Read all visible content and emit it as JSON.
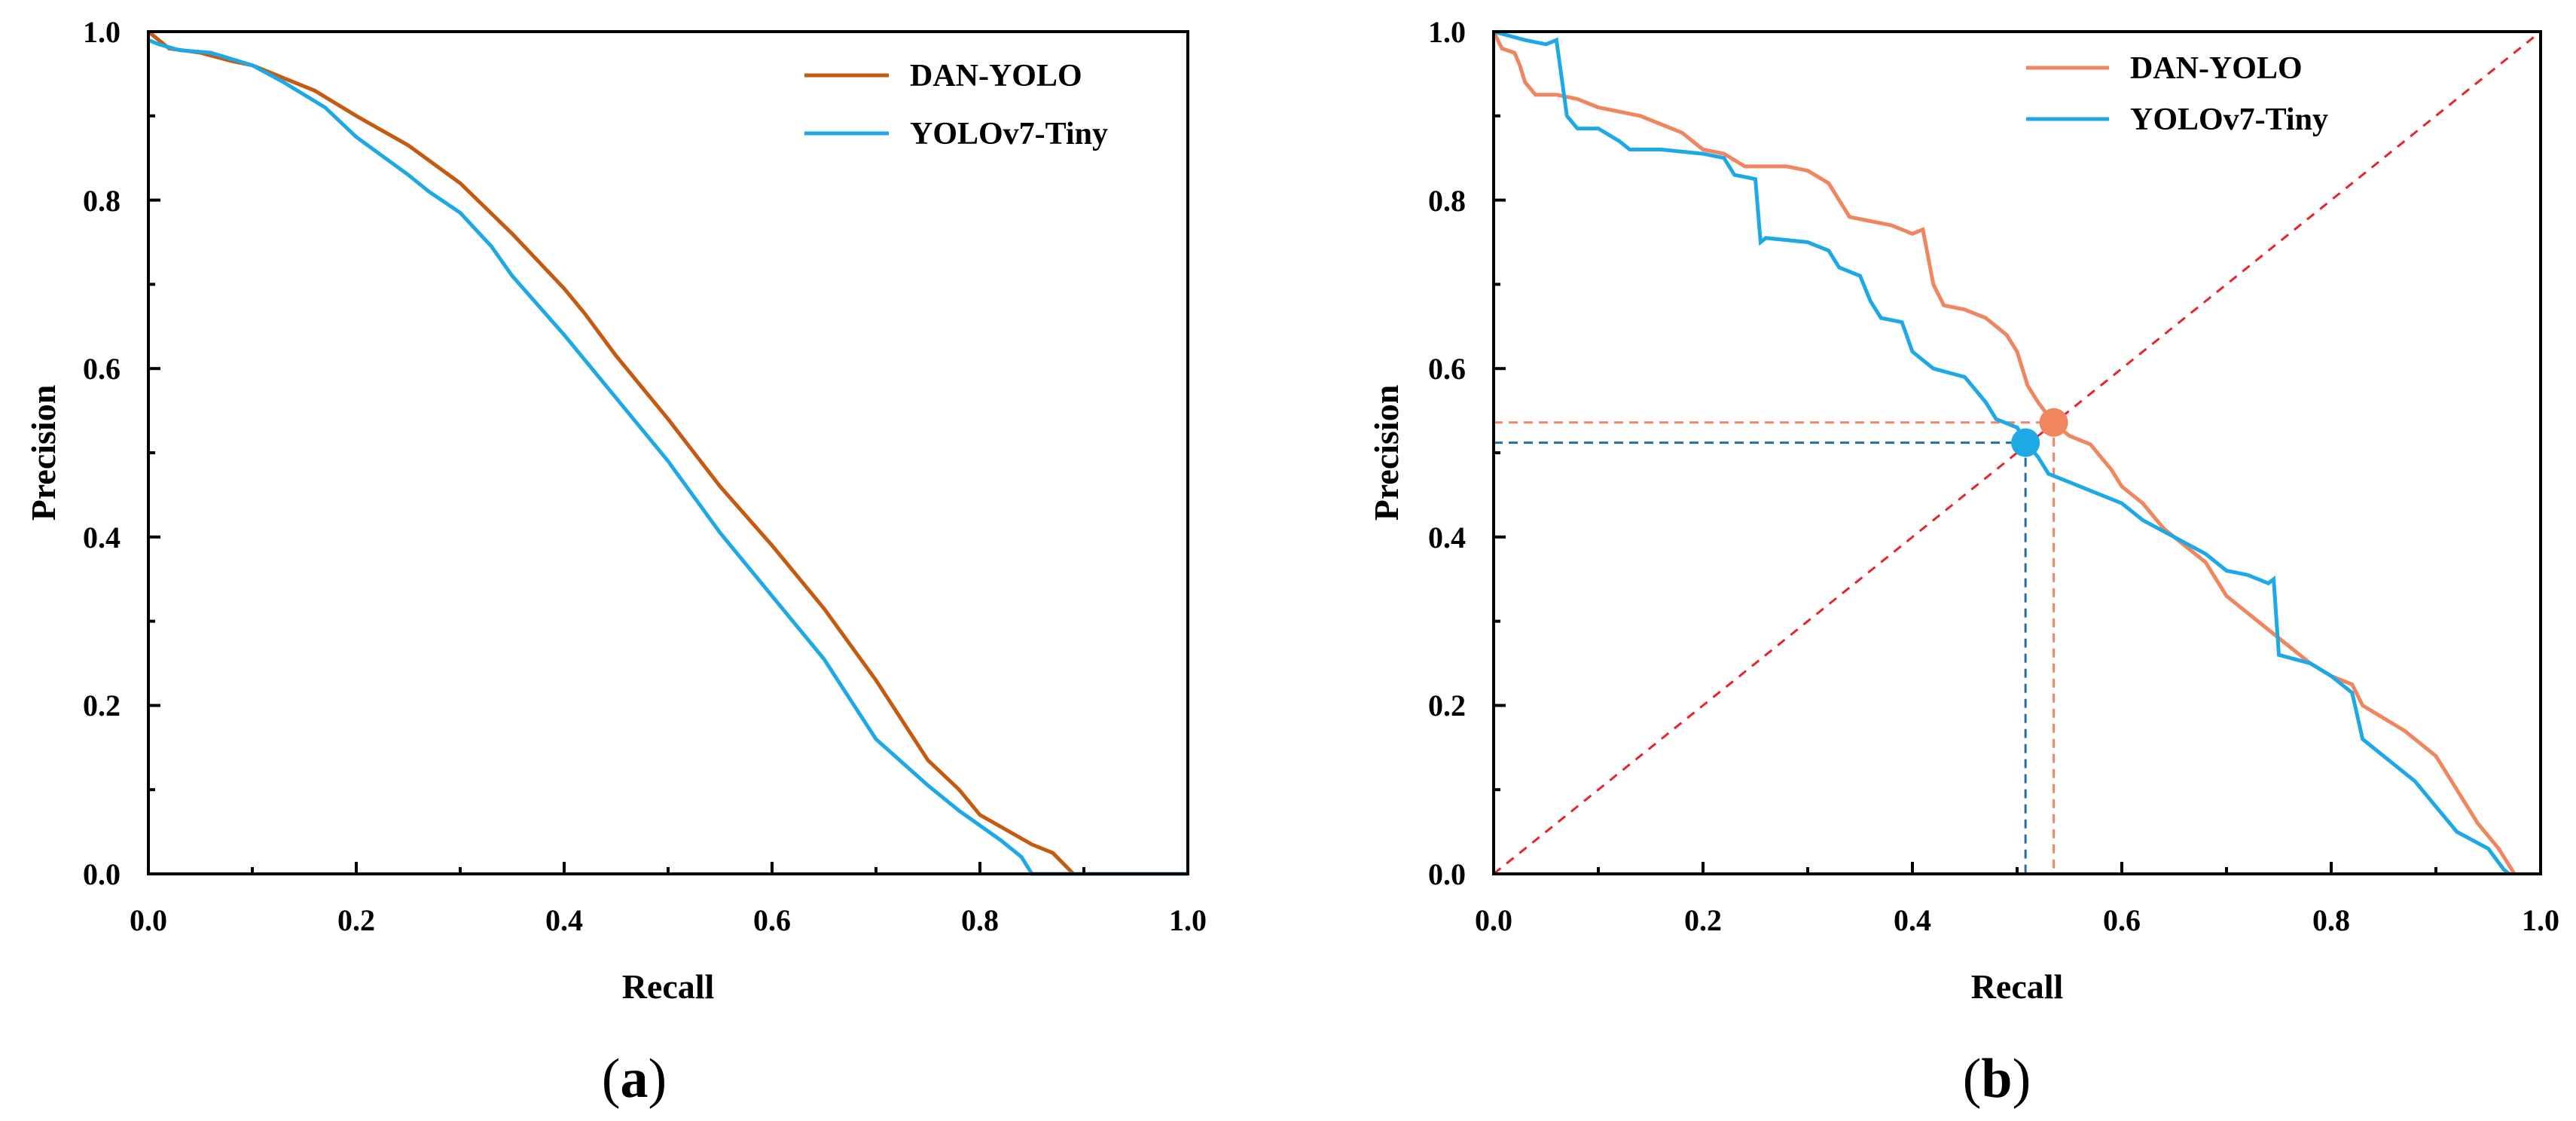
{
  "chart_data": [
    {
      "type": "line",
      "panel_label_open": "(",
      "panel_label_letter": "a",
      "panel_label_close": ")",
      "xlabel": "Recall",
      "ylabel": "Precision",
      "xlim": [
        0,
        1
      ],
      "ylim": [
        0,
        1
      ],
      "x_ticks": [
        "0.0",
        "0.2",
        "0.4",
        "0.6",
        "0.8",
        "1.0"
      ],
      "y_ticks": [
        "0.0",
        "0.2",
        "0.4",
        "0.6",
        "0.8",
        "1.0"
      ],
      "grid": false,
      "legend_position": "top-right",
      "series": [
        {
          "name": "DAN-YOLO",
          "color": "#c55a11",
          "points": [
            [
              0.0,
              1.0
            ],
            [
              0.01,
              0.99
            ],
            [
              0.02,
              0.98
            ],
            [
              0.05,
              0.975
            ],
            [
              0.08,
              0.965
            ],
            [
              0.1,
              0.96
            ],
            [
              0.13,
              0.945
            ],
            [
              0.16,
              0.93
            ],
            [
              0.2,
              0.9
            ],
            [
              0.25,
              0.865
            ],
            [
              0.3,
              0.82
            ],
            [
              0.35,
              0.76
            ],
            [
              0.4,
              0.695
            ],
            [
              0.42,
              0.665
            ],
            [
              0.45,
              0.615
            ],
            [
              0.5,
              0.54
            ],
            [
              0.55,
              0.46
            ],
            [
              0.6,
              0.39
            ],
            [
              0.65,
              0.315
            ],
            [
              0.7,
              0.23
            ],
            [
              0.75,
              0.135
            ],
            [
              0.78,
              0.1
            ],
            [
              0.8,
              0.07
            ],
            [
              0.85,
              0.035
            ],
            [
              0.87,
              0.025
            ],
            [
              0.89,
              0.0
            ],
            [
              1.0,
              0.0
            ]
          ]
        },
        {
          "name": "YOLOv7-Tiny",
          "color": "#1ea9e6",
          "points": [
            [
              0.0,
              0.99
            ],
            [
              0.01,
              0.985
            ],
            [
              0.03,
              0.978
            ],
            [
              0.06,
              0.975
            ],
            [
              0.1,
              0.96
            ],
            [
              0.13,
              0.94
            ],
            [
              0.17,
              0.91
            ],
            [
              0.2,
              0.875
            ],
            [
              0.25,
              0.83
            ],
            [
              0.27,
              0.81
            ],
            [
              0.3,
              0.785
            ],
            [
              0.33,
              0.745
            ],
            [
              0.35,
              0.71
            ],
            [
              0.4,
              0.64
            ],
            [
              0.45,
              0.565
            ],
            [
              0.5,
              0.49
            ],
            [
              0.55,
              0.405
            ],
            [
              0.6,
              0.33
            ],
            [
              0.65,
              0.255
            ],
            [
              0.7,
              0.16
            ],
            [
              0.75,
              0.105
            ],
            [
              0.78,
              0.075
            ],
            [
              0.82,
              0.04
            ],
            [
              0.84,
              0.02
            ],
            [
              0.85,
              0.0
            ],
            [
              1.0,
              0.0
            ]
          ]
        }
      ]
    },
    {
      "type": "line",
      "panel_label_open": "(",
      "panel_label_letter": "b",
      "panel_label_close": ")",
      "xlabel": "Recall",
      "ylabel": "Precision",
      "xlim": [
        0,
        1
      ],
      "ylim": [
        0,
        1
      ],
      "x_ticks": [
        "0.0",
        "0.2",
        "0.4",
        "0.6",
        "0.8",
        "1.0"
      ],
      "y_ticks": [
        "0.0",
        "0.2",
        "0.4",
        "0.6",
        "0.8",
        "1.0"
      ],
      "grid": false,
      "legend_position": "top-right",
      "diagonal": {
        "from": [
          0,
          0
        ],
        "to": [
          1,
          1
        ],
        "color": "#e8242b"
      },
      "series": [
        {
          "name": "DAN-YOLO",
          "color": "#f08660",
          "points": [
            [
              0.0,
              1.0
            ],
            [
              0.008,
              0.98
            ],
            [
              0.02,
              0.975
            ],
            [
              0.025,
              0.96
            ],
            [
              0.03,
              0.94
            ],
            [
              0.04,
              0.925
            ],
            [
              0.06,
              0.925
            ],
            [
              0.08,
              0.92
            ],
            [
              0.1,
              0.91
            ],
            [
              0.12,
              0.905
            ],
            [
              0.14,
              0.9
            ],
            [
              0.16,
              0.89
            ],
            [
              0.18,
              0.88
            ],
            [
              0.2,
              0.86
            ],
            [
              0.22,
              0.855
            ],
            [
              0.24,
              0.84
            ],
            [
              0.26,
              0.84
            ],
            [
              0.28,
              0.84
            ],
            [
              0.3,
              0.835
            ],
            [
              0.32,
              0.82
            ],
            [
              0.34,
              0.78
            ],
            [
              0.36,
              0.775
            ],
            [
              0.38,
              0.77
            ],
            [
              0.4,
              0.76
            ],
            [
              0.41,
              0.765
            ],
            [
              0.42,
              0.7
            ],
            [
              0.43,
              0.675
            ],
            [
              0.45,
              0.67
            ],
            [
              0.47,
              0.66
            ],
            [
              0.49,
              0.64
            ],
            [
              0.5,
              0.62
            ],
            [
              0.51,
              0.58
            ],
            [
              0.52,
              0.56
            ],
            [
              0.535,
              0.535
            ],
            [
              0.55,
              0.52
            ],
            [
              0.57,
              0.51
            ],
            [
              0.59,
              0.48
            ],
            [
              0.6,
              0.46
            ],
            [
              0.62,
              0.44
            ],
            [
              0.64,
              0.41
            ],
            [
              0.66,
              0.39
            ],
            [
              0.68,
              0.37
            ],
            [
              0.7,
              0.33
            ],
            [
              0.72,
              0.31
            ],
            [
              0.75,
              0.28
            ],
            [
              0.78,
              0.25
            ],
            [
              0.8,
              0.235
            ],
            [
              0.82,
              0.225
            ],
            [
              0.83,
              0.2
            ],
            [
              0.85,
              0.185
            ],
            [
              0.87,
              0.17
            ],
            [
              0.9,
              0.14
            ],
            [
              0.92,
              0.1
            ],
            [
              0.94,
              0.06
            ],
            [
              0.96,
              0.03
            ],
            [
              0.975,
              0.0
            ]
          ]
        },
        {
          "name": "YOLOv7-Tiny",
          "color": "#1ea9e6",
          "points": [
            [
              0.0,
              1.0
            ],
            [
              0.03,
              0.99
            ],
            [
              0.05,
              0.985
            ],
            [
              0.06,
              0.99
            ],
            [
              0.07,
              0.9
            ],
            [
              0.08,
              0.885
            ],
            [
              0.1,
              0.885
            ],
            [
              0.12,
              0.87
            ],
            [
              0.13,
              0.86
            ],
            [
              0.16,
              0.86
            ],
            [
              0.2,
              0.855
            ],
            [
              0.22,
              0.85
            ],
            [
              0.23,
              0.83
            ],
            [
              0.25,
              0.825
            ],
            [
              0.255,
              0.75
            ],
            [
              0.26,
              0.755
            ],
            [
              0.3,
              0.75
            ],
            [
              0.32,
              0.74
            ],
            [
              0.33,
              0.72
            ],
            [
              0.35,
              0.71
            ],
            [
              0.36,
              0.68
            ],
            [
              0.37,
              0.66
            ],
            [
              0.39,
              0.655
            ],
            [
              0.4,
              0.62
            ],
            [
              0.42,
              0.6
            ],
            [
              0.45,
              0.59
            ],
            [
              0.47,
              0.56
            ],
            [
              0.48,
              0.54
            ],
            [
              0.5,
              0.53
            ],
            [
              0.51,
              0.51
            ],
            [
              0.52,
              0.495
            ],
            [
              0.53,
              0.475
            ],
            [
              0.55,
              0.465
            ],
            [
              0.58,
              0.45
            ],
            [
              0.6,
              0.44
            ],
            [
              0.62,
              0.42
            ],
            [
              0.65,
              0.4
            ],
            [
              0.68,
              0.38
            ],
            [
              0.7,
              0.36
            ],
            [
              0.72,
              0.355
            ],
            [
              0.74,
              0.345
            ],
            [
              0.745,
              0.35
            ],
            [
              0.75,
              0.26
            ],
            [
              0.78,
              0.25
            ],
            [
              0.8,
              0.235
            ],
            [
              0.82,
              0.215
            ],
            [
              0.83,
              0.16
            ],
            [
              0.85,
              0.14
            ],
            [
              0.88,
              0.11
            ],
            [
              0.9,
              0.08
            ],
            [
              0.92,
              0.05
            ],
            [
              0.95,
              0.03
            ],
            [
              0.965,
              0.005
            ],
            [
              0.97,
              0.0
            ]
          ]
        }
      ],
      "break_even_points": [
        {
          "series": "DAN-YOLO",
          "recall": 0.535,
          "precision": 0.536,
          "color": "#f08660"
        },
        {
          "series": "YOLOv7-Tiny",
          "recall": 0.508,
          "precision": 0.512,
          "color": "#1ea9e6"
        }
      ]
    }
  ]
}
